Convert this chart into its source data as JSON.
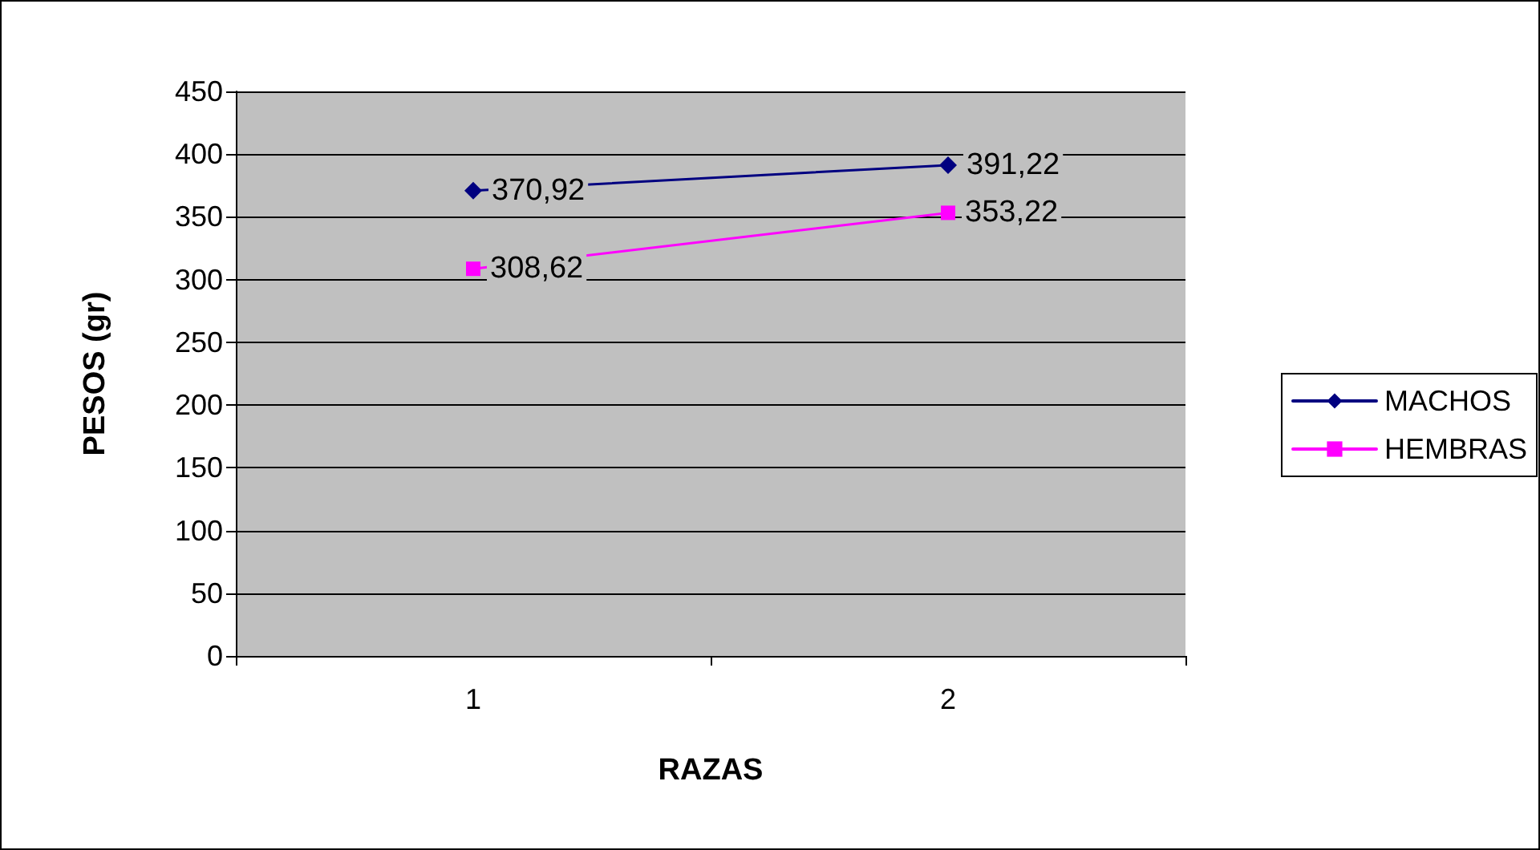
{
  "chart_data": {
    "type": "line",
    "xlabel": "RAZAS",
    "ylabel": "PESOS (gr)",
    "categories": [
      "1",
      "2"
    ],
    "series": [
      {
        "name": "MACHOS",
        "color": "#000080",
        "marker": "diamond",
        "values": [
          370.92,
          391.22
        ],
        "value_labels": [
          "370,92",
          "391,22"
        ]
      },
      {
        "name": "HEMBRAS",
        "color": "#ff00ff",
        "marker": "square",
        "values": [
          308.62,
          353.22
        ],
        "value_labels": [
          "308,62",
          "353,22"
        ]
      }
    ],
    "ylim": [
      0,
      450
    ],
    "yticks": [
      0,
      50,
      100,
      150,
      200,
      250,
      300,
      350,
      400,
      450
    ],
    "grid": "y",
    "legend": "right"
  }
}
